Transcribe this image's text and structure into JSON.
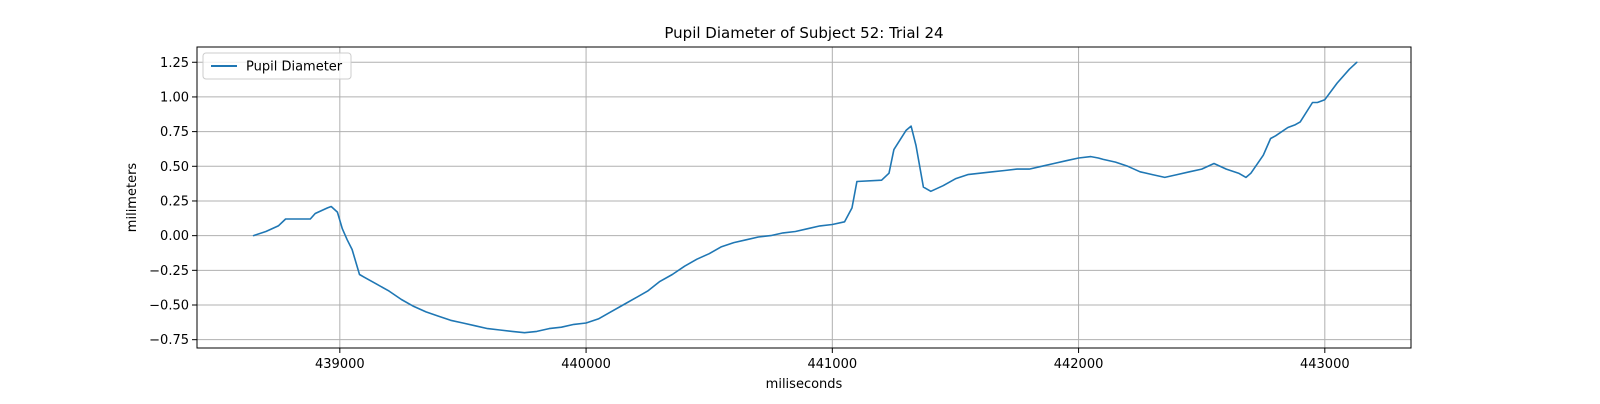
{
  "chart_data": {
    "type": "line",
    "title": "Pupil Diameter of Subject 52: Trial 24",
    "xlabel": "miliseconds",
    "ylabel": "milimeters",
    "xlim": [
      438420,
      443350
    ],
    "ylim": [
      -0.81,
      1.36
    ],
    "xticks": [
      439000,
      440000,
      441000,
      442000,
      443000
    ],
    "yticks": [
      -0.75,
      -0.5,
      -0.25,
      0.0,
      0.25,
      0.5,
      0.75,
      1.0,
      1.25
    ],
    "xtick_labels": [
      "439000",
      "440000",
      "441000",
      "442000",
      "443000"
    ],
    "ytick_labels": [
      "−0.75",
      "−0.50",
      "−0.25",
      "0.00",
      "0.25",
      "0.50",
      "0.75",
      "1.00",
      "1.25"
    ],
    "grid": true,
    "legend": {
      "position": "upper-left",
      "entries": [
        "Pupil Diameter"
      ]
    },
    "colors": {
      "series": "#1f77b4"
    },
    "series": [
      {
        "name": "Pupil Diameter",
        "x": [
          438650,
          438700,
          438750,
          438780,
          438800,
          438850,
          438880,
          438900,
          438950,
          438965,
          438990,
          439010,
          439030,
          439050,
          439080,
          439100,
          439150,
          439200,
          439250,
          439300,
          439350,
          439400,
          439450,
          439500,
          439550,
          439600,
          439650,
          439700,
          439750,
          439800,
          439850,
          439900,
          439950,
          440000,
          440050,
          440100,
          440150,
          440200,
          440250,
          440300,
          440350,
          440400,
          440450,
          440500,
          440550,
          440600,
          440650,
          440700,
          440750,
          440800,
          440850,
          440900,
          440950,
          441000,
          441050,
          441080,
          441100,
          441200,
          441230,
          441250,
          441300,
          441320,
          441340,
          441370,
          441400,
          441450,
          441500,
          441550,
          441600,
          441650,
          441700,
          441750,
          441800,
          441850,
          441900,
          441950,
          442000,
          442050,
          442080,
          442100,
          442150,
          442200,
          442250,
          442300,
          442350,
          442400,
          442450,
          442500,
          442550,
          442600,
          442650,
          442680,
          442700,
          442750,
          442780,
          442800,
          442850,
          442880,
          442900,
          442950,
          442970,
          443000,
          443050,
          443100,
          443130
        ],
        "y": [
          0.0,
          0.03,
          0.07,
          0.12,
          0.12,
          0.12,
          0.12,
          0.16,
          0.2,
          0.21,
          0.17,
          0.05,
          -0.03,
          -0.1,
          -0.28,
          -0.3,
          -0.35,
          -0.4,
          -0.46,
          -0.51,
          -0.55,
          -0.58,
          -0.61,
          -0.63,
          -0.65,
          -0.67,
          -0.68,
          -0.69,
          -0.7,
          -0.69,
          -0.67,
          -0.66,
          -0.64,
          -0.63,
          -0.6,
          -0.55,
          -0.5,
          -0.45,
          -0.4,
          -0.33,
          -0.28,
          -0.22,
          -0.17,
          -0.13,
          -0.08,
          -0.05,
          -0.03,
          -0.01,
          0.0,
          0.02,
          0.03,
          0.05,
          0.07,
          0.08,
          0.1,
          0.2,
          0.39,
          0.4,
          0.45,
          0.62,
          0.76,
          0.79,
          0.65,
          0.35,
          0.32,
          0.36,
          0.41,
          0.44,
          0.45,
          0.46,
          0.47,
          0.48,
          0.48,
          0.5,
          0.52,
          0.54,
          0.56,
          0.57,
          0.56,
          0.55,
          0.53,
          0.5,
          0.46,
          0.44,
          0.42,
          0.44,
          0.46,
          0.48,
          0.52,
          0.48,
          0.45,
          0.42,
          0.45,
          0.58,
          0.7,
          0.72,
          0.78,
          0.8,
          0.82,
          0.96,
          0.96,
          0.98,
          1.1,
          1.2,
          1.25
        ]
      }
    ]
  }
}
